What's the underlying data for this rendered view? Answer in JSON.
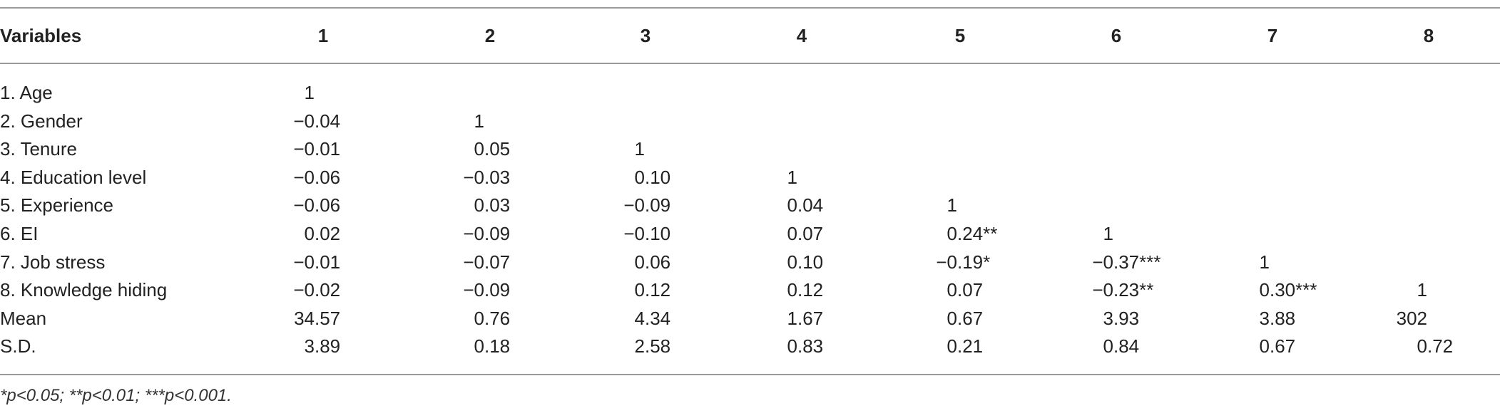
{
  "table": {
    "header": [
      "Variables",
      "1",
      "2",
      "3",
      "4",
      "5",
      "6",
      "7",
      "8"
    ],
    "rows": [
      [
        "1. Age",
        "1"
      ],
      [
        "2. Gender",
        "−0.04",
        "1"
      ],
      [
        "3. Tenure",
        "−0.01",
        "0.05",
        "1"
      ],
      [
        "4. Education level",
        "−0.06",
        "−0.03",
        "0.10",
        "1"
      ],
      [
        "5. Experience",
        "−0.06",
        "0.03",
        "−0.09",
        "0.04",
        "1"
      ],
      [
        "6. EI",
        "0.02",
        "−0.09",
        "−0.10",
        "0.07",
        "0.24**",
        "1"
      ],
      [
        "7. Job stress",
        "−0.01",
        "−0.07",
        "0.06",
        "0.10",
        "−0.19*",
        "−0.37***",
        "1"
      ],
      [
        "8. Knowledge hiding",
        "−0.02",
        "−0.09",
        "0.12",
        "0.12",
        "0.07",
        "−0.23**",
        "0.30***",
        "1"
      ],
      [
        "Mean",
        "34.57",
        "0.76",
        "4.34",
        "1.67",
        "0.67",
        "3.93",
        "3.88",
        "302"
      ],
      [
        "S.D.",
        "3.89",
        "0.18",
        "2.58",
        "0.83",
        "0.21",
        "0.84",
        "0.67",
        "0.72"
      ]
    ],
    "footnote": "*p<0.05; **p<0.01; ***p<0.001."
  }
}
